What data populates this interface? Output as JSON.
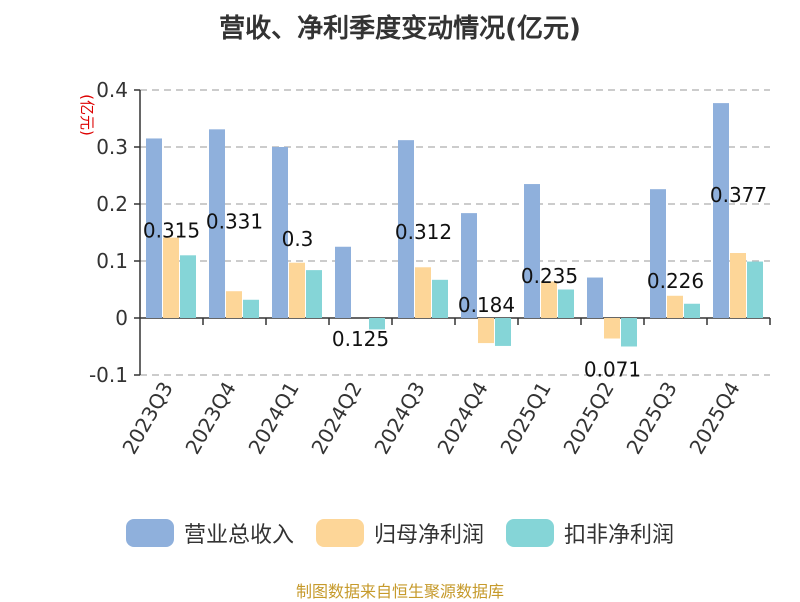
{
  "title": "营收、净利季度变动情况(亿元)",
  "source": "制图数据来自恒生聚源数据库",
  "colors": {
    "revenue": "#8fb0dc",
    "net_profit": "#fdd698",
    "deducted_profit": "#85d5d7"
  },
  "chart_data": {
    "type": "bar",
    "title": "营收、净利季度变动情况(亿元)",
    "ylabel": "(亿元)",
    "ylim": [
      -0.1,
      0.4
    ],
    "yticks": [
      0.4,
      0.3,
      0.2,
      0.1,
      0,
      -0.1
    ],
    "grid": true,
    "legend_position": "bottom",
    "categories": [
      "2023Q3",
      "2023Q4",
      "2024Q1",
      "2024Q2",
      "2024Q3",
      "2024Q4",
      "2025Q1",
      "2025Q2",
      "2025Q3",
      "2025Q4"
    ],
    "series": [
      {
        "name": "营业总收入",
        "values": [
          0.315,
          0.331,
          0.3,
          0.125,
          0.312,
          0.184,
          0.235,
          0.071,
          0.226,
          0.377
        ]
      },
      {
        "name": "归母净利润",
        "values": [
          0.141,
          0.047,
          0.097,
          0.0,
          0.089,
          -0.044,
          0.064,
          -0.036,
          0.039,
          0.114
        ]
      },
      {
        "name": "扣非净利润",
        "values": [
          0.11,
          0.032,
          0.084,
          -0.02,
          0.067,
          -0.049,
          0.05,
          -0.05,
          0.025,
          0.099
        ]
      }
    ],
    "data_labels": [
      "0.315",
      "0.331",
      "0.3",
      "0.125",
      "0.312",
      "0.184",
      "0.235",
      "0.071",
      "0.226",
      "0.377"
    ]
  }
}
